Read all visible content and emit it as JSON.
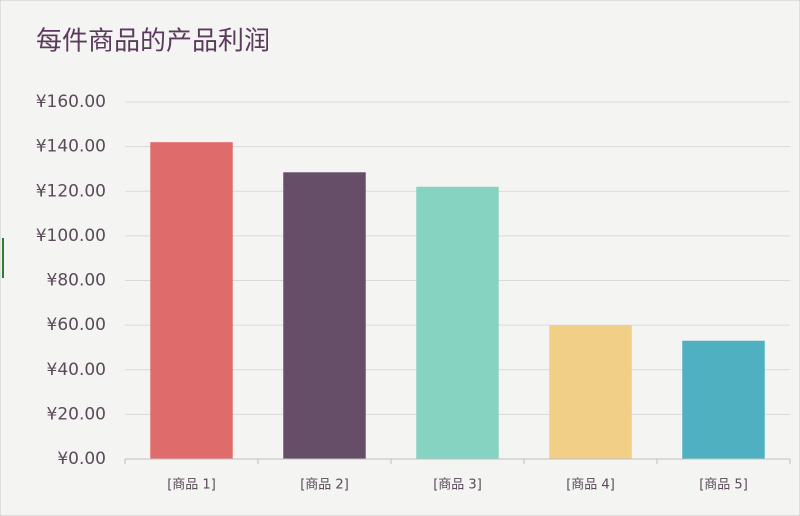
{
  "chart_data": {
    "type": "bar",
    "title": "每件商品的产品利润",
    "categories": [
      "[商品 1]",
      "[商品 2]",
      "[商品 3]",
      "[商品 4]",
      "[商品 5]"
    ],
    "values": [
      142,
      128.5,
      122,
      60,
      53
    ],
    "colors": [
      "#e06b6b",
      "#664d68",
      "#86d3c1",
      "#f2cf86",
      "#4eb0c0"
    ],
    "ylim": [
      0,
      160
    ],
    "yticks": [
      {
        "value": 0,
        "label": "¥0.00"
      },
      {
        "value": 20,
        "label": "¥20.00"
      },
      {
        "value": 40,
        "label": "¥40.00"
      },
      {
        "value": 60,
        "label": "¥60.00"
      },
      {
        "value": 80,
        "label": "¥80.00"
      },
      {
        "value": 100,
        "label": "¥100.00"
      },
      {
        "value": 120,
        "label": "¥120.00"
      },
      {
        "value": 140,
        "label": "¥140.00"
      },
      {
        "value": 160,
        "label": "¥160.00"
      }
    ],
    "grid": true
  }
}
